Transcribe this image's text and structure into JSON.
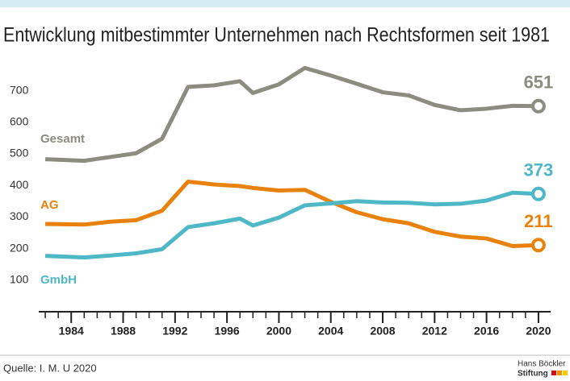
{
  "chart_data": {
    "type": "line",
    "title": "Entwicklung mitbestimmter Unternehmen nach Rechtsformen seit 1981",
    "x": [
      1982,
      1985,
      1987,
      1989,
      1991,
      1993,
      1995,
      1997,
      1998,
      2000,
      2002,
      2004,
      2006,
      2008,
      2010,
      2012,
      2014,
      2016,
      2018,
      2020
    ],
    "series": [
      {
        "name": "Gesamt",
        "color": "#8c8c80",
        "values": [
          483,
          478,
          490,
          502,
          548,
          712,
          717,
          730,
          693,
          720,
          772,
          748,
          722,
          695,
          685,
          655,
          638,
          643,
          652,
          651
        ]
      },
      {
        "name": "AG",
        "color": "#e8820c",
        "values": [
          278,
          276,
          285,
          290,
          320,
          412,
          403,
          398,
          392,
          384,
          386,
          348,
          315,
          293,
          280,
          253,
          238,
          232,
          208,
          211
        ]
      },
      {
        "name": "GmbH",
        "color": "#4fb8c7",
        "values": [
          177,
          172,
          178,
          185,
          198,
          268,
          280,
          295,
          273,
          298,
          337,
          343,
          350,
          346,
          345,
          340,
          342,
          352,
          377,
          373
        ]
      }
    ],
    "xlim": [
      1981,
      2021
    ],
    "xticks": [
      1984,
      1988,
      1992,
      1996,
      2000,
      2004,
      2008,
      2012,
      2016,
      2020
    ],
    "ylim": [
      0,
      800
    ],
    "yticks": [
      100,
      200,
      300,
      400,
      500,
      600,
      700
    ],
    "grid": false,
    "source": "Quelle: I. M. U 2020",
    "logo": {
      "line1": "Hans Böckler",
      "line2": "Stiftung"
    }
  }
}
